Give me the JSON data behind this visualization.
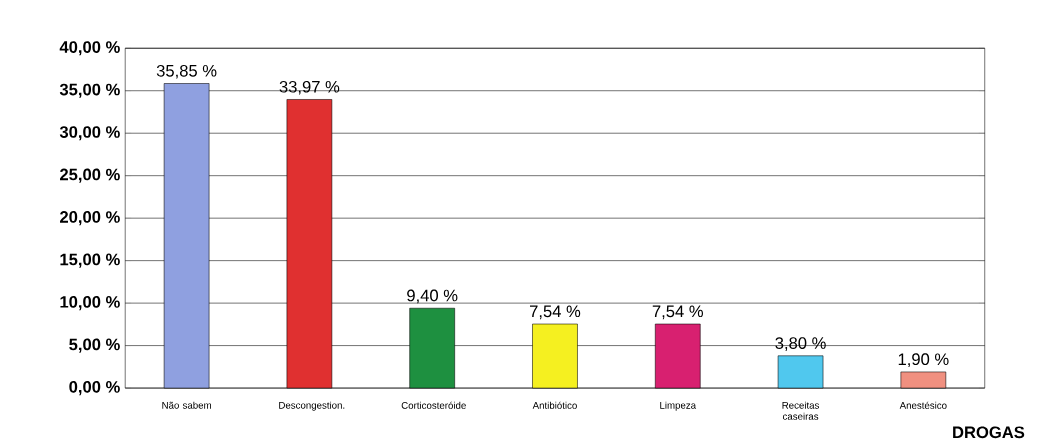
{
  "chart_data": {
    "type": "bar",
    "xlabel": "DROGAS",
    "categories": [
      "Não sabem",
      "Descongestion.",
      "Corticosteróide",
      "Antibiótico",
      "Limpeza",
      "Receitas caseiras",
      "Anestésico"
    ],
    "values": [
      35.85,
      33.97,
      9.4,
      7.54,
      7.54,
      3.8,
      1.9
    ],
    "value_labels": [
      "35,85 %",
      "33,97 %",
      "9,40 %",
      "7,54 %",
      "7,54 %",
      "3,80 %",
      "1,90 %"
    ],
    "colors": [
      "#8fa0e0",
      "#e03030",
      "#1e9040",
      "#f5f020",
      "#d82070",
      "#50c8ee",
      "#f09080"
    ],
    "ylim": [
      0,
      40
    ],
    "yticks": [
      {
        "value": 0,
        "label": "0,00 %"
      },
      {
        "value": 5,
        "label": "5,00 %"
      },
      {
        "value": 10,
        "label": "10,00 %"
      },
      {
        "value": 15,
        "label": "15,00 %"
      },
      {
        "value": 20,
        "label": "20,00 %"
      },
      {
        "value": 25,
        "label": "25,00 %"
      },
      {
        "value": 30,
        "label": "30,00 %"
      },
      {
        "value": 35,
        "label": "35,00 %"
      },
      {
        "value": 40,
        "label": "40,00 %"
      }
    ],
    "grid": "y"
  }
}
